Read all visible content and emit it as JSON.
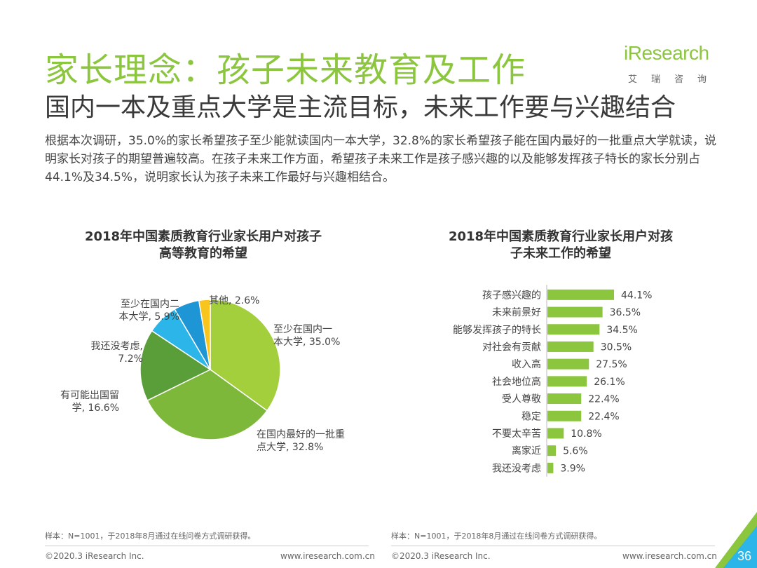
{
  "header": {
    "title": "家长理念：孩子未来教育及工作",
    "subtitle": "国内一本及重点大学是主流目标，未来工作要与兴趣结合",
    "body": "根据本次调研，35.0%的家长希望孩子至少能就读国内一本大学，32.8%的家长希望孩子能在国内最好的一批重点大学就读，说明家长对孩子的期望普遍较高。在孩子未来工作方面，希望孩子未来工作是孩子感兴趣的以及能够发挥孩子特长的家长分别占44.1%及34.5%，说明家长认为孩子未来工作最好与兴趣相结合。"
  },
  "logo": {
    "name": "iResearch",
    "cn": "艾瑞咨询"
  },
  "chart_data": [
    {
      "type": "pie",
      "title_lines": [
        "2018年中国素质教育行业家长用户对孩子",
        "高等教育的希望"
      ],
      "slices": [
        {
          "label_lines": [
            "至少在国内一",
            "本大学, 35.0%"
          ],
          "value": 35.0,
          "color": "#a3cf3c"
        },
        {
          "label_lines": [
            "在国内最好的一批重",
            "点大学, 32.8%"
          ],
          "value": 32.8,
          "color": "#7db83a"
        },
        {
          "label_lines": [
            "有可能出国留",
            "学, 16.6%"
          ],
          "value": 16.6,
          "color": "#5a9e3a"
        },
        {
          "label_lines": [
            "我还没考虑,",
            "7.2%"
          ],
          "value": 7.2,
          "color": "#2bb5e8"
        },
        {
          "label_lines": [
            "至少在国内二",
            "本大学, 5.9%"
          ],
          "value": 5.9,
          "color": "#1e96d6"
        },
        {
          "label_lines": [
            "其他, 2.6%"
          ],
          "value": 2.6,
          "color": "#f7c51e"
        }
      ]
    },
    {
      "type": "bar",
      "orientation": "horizontal",
      "title_lines": [
        "2018年中国素质教育行业家长用户对孩",
        "子未来工作的希望"
      ],
      "categories": [
        "孩子感兴趣的",
        "未来前景好",
        "能够发挥孩子的特长",
        "对社会有贡献",
        "收入高",
        "社会地位高",
        "受人尊敬",
        "稳定",
        "不要太辛苦",
        "离家近",
        "我还没考虑"
      ],
      "values": [
        44.1,
        36.5,
        34.5,
        30.5,
        27.5,
        26.1,
        22.4,
        22.4,
        10.8,
        5.6,
        3.9
      ],
      "value_labels": [
        "44.1%",
        "36.5%",
        "34.5%",
        "30.5%",
        "27.5%",
        "26.1%",
        "22.4%",
        "22.4%",
        "10.8%",
        "5.6%",
        "3.9%"
      ],
      "color": "#8cc63f"
    }
  ],
  "notes": {
    "left": "样本：N=1001，于2018年8月通过在线问卷方式调研获得。",
    "right": "样本：N=1001，于2018年8月通过在线问卷方式调研获得。"
  },
  "footer": {
    "left_copyright": "©2020.3 iResearch Inc.",
    "left_url": "www.iresearch.com.cn",
    "right_copyright": "©2020.3 iResearch Inc.",
    "right_url": "www.iresearch.com.cn",
    "page": "36"
  },
  "colors": {
    "accent": "#8cc63f",
    "corner": "#2bb5e8"
  }
}
